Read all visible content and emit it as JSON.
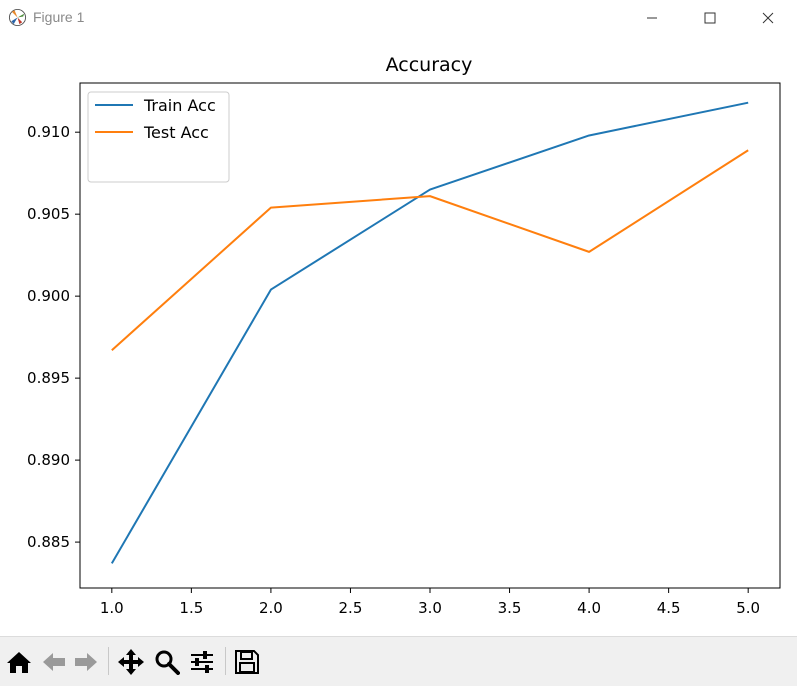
{
  "window": {
    "title": "Figure 1"
  },
  "toolbar": {
    "buttons": [
      "home-icon",
      "back-icon",
      "forward-icon",
      "pan-icon",
      "zoom-icon",
      "configure-subplots-icon",
      "save-icon"
    ]
  },
  "chart_data": {
    "type": "line",
    "title": "Accuracy",
    "xlabel": "",
    "ylabel": "",
    "x": [
      1.0,
      2.0,
      3.0,
      4.0,
      5.0
    ],
    "series": [
      {
        "name": "Train Acc",
        "color": "#1f77b4",
        "values": [
          0.8837,
          0.9004,
          0.9065,
          0.9098,
          0.9118
        ]
      },
      {
        "name": "Test Acc",
        "color": "#ff7f0e",
        "values": [
          0.8967,
          0.9054,
          0.9061,
          0.9027,
          0.9089
        ]
      }
    ],
    "xlim": [
      0.8,
      5.2
    ],
    "ylim": [
      0.8822,
      0.913
    ],
    "xticks": [
      "1.0",
      "1.5",
      "2.0",
      "2.5",
      "3.0",
      "3.5",
      "4.0",
      "4.5",
      "5.0"
    ],
    "xtick_values": [
      1.0,
      1.5,
      2.0,
      2.5,
      3.0,
      3.5,
      4.0,
      4.5,
      5.0
    ],
    "yticks": [
      "0.885",
      "0.890",
      "0.895",
      "0.900",
      "0.905",
      "0.910"
    ],
    "ytick_values": [
      0.885,
      0.89,
      0.895,
      0.9,
      0.905,
      0.91
    ],
    "grid": false,
    "legend": "upper left"
  }
}
